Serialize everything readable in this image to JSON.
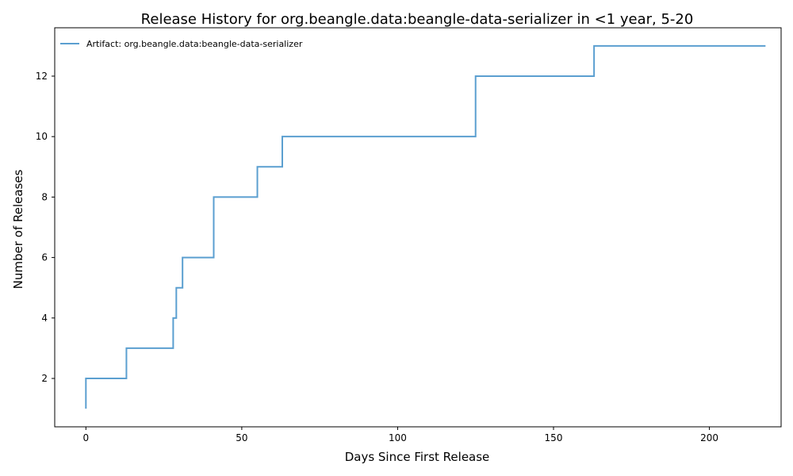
{
  "chart_data": {
    "type": "line",
    "title": "Release History for org.beangle.data:beangle-data-serializer in <1 year, 5-20",
    "xlabel": "Days Since First Release",
    "ylabel": "Number of Releases",
    "xlim": [
      -10,
      223
    ],
    "ylim": [
      0.4,
      13.6
    ],
    "xticks": [
      0,
      50,
      100,
      150,
      200
    ],
    "yticks": [
      2,
      4,
      6,
      8,
      10,
      12
    ],
    "grid": false,
    "legend_position": "top-left",
    "step": "post",
    "series": [
      {
        "name": "Artifact: org.beangle.data:beangle-data-serializer",
        "color": "#5b9fd0",
        "x": [
          0,
          0,
          13,
          28,
          29,
          31,
          41,
          55,
          63,
          125,
          163,
          218
        ],
        "y": [
          1,
          2,
          3,
          4,
          5,
          6,
          8,
          9,
          10,
          12,
          13,
          13
        ]
      }
    ]
  }
}
